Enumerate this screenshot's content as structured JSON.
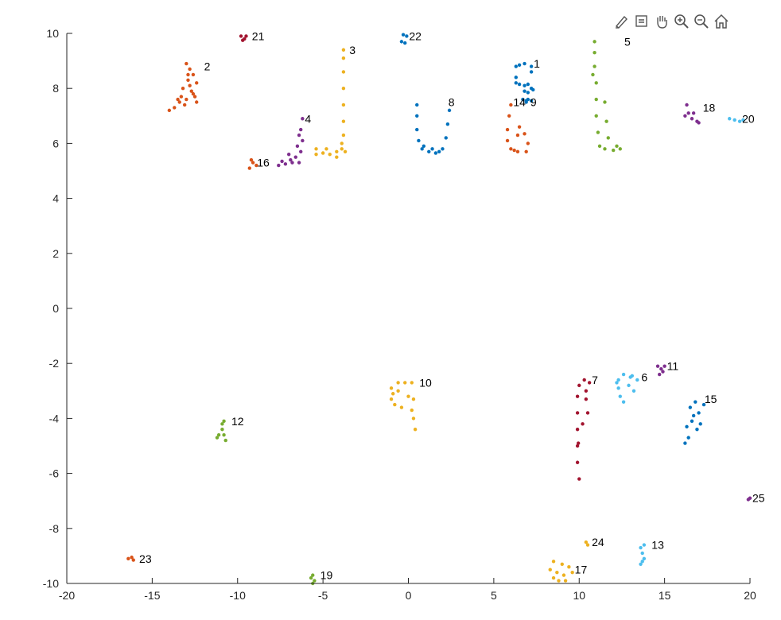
{
  "toolbar": {
    "buttons": [
      {
        "name": "brush-data-icon"
      },
      {
        "name": "data-cursor-icon"
      },
      {
        "name": "pan-icon"
      },
      {
        "name": "zoom-in-icon"
      },
      {
        "name": "zoom-out-icon"
      },
      {
        "name": "restore-view-icon"
      }
    ]
  },
  "chart_data": {
    "type": "scatter",
    "title": "",
    "xlabel": "",
    "ylabel": "",
    "xlim": [
      -20,
      20
    ],
    "ylim": [
      -10,
      10
    ],
    "xticks": [
      -20,
      -15,
      -10,
      -5,
      0,
      5,
      10,
      15,
      20
    ],
    "yticks": [
      -10,
      -8,
      -6,
      -4,
      -2,
      0,
      2,
      4,
      6,
      8,
      10
    ],
    "grid": false,
    "legend": "none",
    "palette": [
      "#0072BD",
      "#D95319",
      "#EDB120",
      "#7E2F8E",
      "#77AC30",
      "#4DBEEE",
      "#A2142F"
    ],
    "clusters": [
      {
        "label": "1",
        "color": "#0072BD",
        "label_pos": [
          7.2,
          8.9
        ],
        "points": [
          [
            6.3,
            8.8
          ],
          [
            6.3,
            8.4
          ],
          [
            6.3,
            8.2
          ],
          [
            6.5,
            8.15
          ],
          [
            6.8,
            8.1
          ],
          [
            7.0,
            8.15
          ],
          [
            7.2,
            8.0
          ],
          [
            7.3,
            7.95
          ],
          [
            7.0,
            7.85
          ],
          [
            6.8,
            7.9
          ],
          [
            7.2,
            8.8
          ],
          [
            7.2,
            8.6
          ],
          [
            6.8,
            8.9
          ],
          [
            6.5,
            8.85
          ],
          [
            7.0,
            7.6
          ],
          [
            7.2,
            7.55
          ],
          [
            6.9,
            7.5
          ]
        ]
      },
      {
        "label": "2",
        "color": "#D95319",
        "label_pos": [
          -12.1,
          8.8
        ],
        "points": [
          [
            -13.0,
            8.9
          ],
          [
            -12.8,
            8.7
          ],
          [
            -12.6,
            8.5
          ],
          [
            -12.9,
            8.3
          ],
          [
            -12.4,
            8.2
          ],
          [
            -13.2,
            8.0
          ],
          [
            -12.7,
            7.9
          ],
          [
            -12.5,
            7.7
          ],
          [
            -13.0,
            7.6
          ],
          [
            -13.4,
            7.5
          ],
          [
            -13.1,
            7.4
          ],
          [
            -13.7,
            7.3
          ],
          [
            -14.0,
            7.2
          ],
          [
            -12.8,
            8.1
          ],
          [
            -12.6,
            7.8
          ],
          [
            -13.3,
            7.7
          ],
          [
            -12.9,
            8.5
          ],
          [
            -12.4,
            7.5
          ],
          [
            -13.5,
            7.6
          ]
        ]
      },
      {
        "label": "3",
        "color": "#EDB120",
        "label_pos": [
          -3.6,
          9.4
        ],
        "points": [
          [
            -3.8,
            9.4
          ],
          [
            -3.8,
            9.1
          ],
          [
            -3.8,
            8.6
          ],
          [
            -3.8,
            8.0
          ],
          [
            -3.8,
            7.4
          ],
          [
            -3.8,
            6.8
          ],
          [
            -3.8,
            6.3
          ],
          [
            -3.9,
            5.8
          ],
          [
            -4.2,
            5.7
          ],
          [
            -4.6,
            5.6
          ],
          [
            -5.0,
            5.65
          ],
          [
            -5.4,
            5.6
          ],
          [
            -5.4,
            5.8
          ],
          [
            -4.8,
            5.8
          ],
          [
            -4.2,
            5.5
          ],
          [
            -3.7,
            5.7
          ],
          [
            -3.9,
            6.0
          ]
        ]
      },
      {
        "label": "4",
        "color": "#7E2F8E",
        "label_pos": [
          -6.2,
          6.9
        ],
        "points": [
          [
            -6.2,
            6.9
          ],
          [
            -6.3,
            6.5
          ],
          [
            -6.2,
            6.1
          ],
          [
            -6.3,
            5.7
          ],
          [
            -6.4,
            5.3
          ],
          [
            -6.8,
            5.3
          ],
          [
            -7.2,
            5.25
          ],
          [
            -7.6,
            5.2
          ],
          [
            -6.6,
            5.5
          ],
          [
            -7.0,
            5.6
          ],
          [
            -6.5,
            5.9
          ],
          [
            -6.9,
            5.4
          ],
          [
            -7.4,
            5.35
          ],
          [
            -6.4,
            6.3
          ]
        ]
      },
      {
        "label": "5",
        "color": "#77AC30",
        "label_pos": [
          12.5,
          9.7
        ],
        "points": [
          [
            10.9,
            9.7
          ],
          [
            10.9,
            9.3
          ],
          [
            10.9,
            8.8
          ],
          [
            11.0,
            8.2
          ],
          [
            11.0,
            7.6
          ],
          [
            11.0,
            7.0
          ],
          [
            11.1,
            6.4
          ],
          [
            11.2,
            5.9
          ],
          [
            11.5,
            5.8
          ],
          [
            12.0,
            5.75
          ],
          [
            12.4,
            5.8
          ],
          [
            11.5,
            7.5
          ],
          [
            11.6,
            6.8
          ],
          [
            11.7,
            6.2
          ],
          [
            12.2,
            5.9
          ],
          [
            10.8,
            8.5
          ]
        ]
      },
      {
        "label": "6",
        "color": "#4DBEEE",
        "label_pos": [
          13.5,
          -2.5
        ],
        "points": [
          [
            12.3,
            -2.6
          ],
          [
            12.6,
            -2.4
          ],
          [
            13.0,
            -2.5
          ],
          [
            13.4,
            -2.6
          ],
          [
            12.3,
            -2.9
          ],
          [
            12.4,
            -3.2
          ],
          [
            12.6,
            -3.4
          ],
          [
            12.9,
            -2.8
          ],
          [
            13.2,
            -3.0
          ],
          [
            12.2,
            -2.7
          ],
          [
            13.1,
            -2.45
          ]
        ]
      },
      {
        "label": "7",
        "color": "#A2142F",
        "label_pos": [
          10.6,
          -2.6
        ],
        "points": [
          [
            10.3,
            -2.6
          ],
          [
            10.0,
            -2.8
          ],
          [
            10.6,
            -2.7
          ],
          [
            9.9,
            -3.2
          ],
          [
            9.9,
            -3.8
          ],
          [
            9.9,
            -4.4
          ],
          [
            9.9,
            -5.0
          ],
          [
            9.9,
            -5.6
          ],
          [
            10.0,
            -6.2
          ],
          [
            10.4,
            -3.3
          ],
          [
            10.5,
            -3.8
          ],
          [
            10.2,
            -4.2
          ],
          [
            10.4,
            -3.0
          ],
          [
            9.95,
            -4.9
          ]
        ]
      },
      {
        "label": "8",
        "color": "#0072BD",
        "label_pos": [
          2.2,
          7.5
        ],
        "points": [
          [
            0.5,
            7.4
          ],
          [
            0.5,
            7.0
          ],
          [
            0.5,
            6.5
          ],
          [
            0.6,
            6.1
          ],
          [
            0.8,
            5.8
          ],
          [
            1.2,
            5.7
          ],
          [
            1.6,
            5.65
          ],
          [
            2.0,
            5.8
          ],
          [
            2.2,
            6.2
          ],
          [
            2.3,
            6.7
          ],
          [
            2.4,
            7.2
          ],
          [
            1.4,
            5.8
          ],
          [
            0.9,
            5.9
          ],
          [
            1.8,
            5.7
          ]
        ]
      },
      {
        "label": "9",
        "color": "#0072BD",
        "label_pos": [
          7.0,
          7.5
        ],
        "points": [
          [
            6.7,
            7.6
          ],
          [
            6.9,
            7.55
          ]
        ]
      },
      {
        "label": "10",
        "color": "#EDB120",
        "label_pos": [
          0.5,
          -2.7
        ],
        "points": [
          [
            -1.0,
            -2.9
          ],
          [
            -0.6,
            -2.7
          ],
          [
            -0.2,
            -2.7
          ],
          [
            0.2,
            -2.7
          ],
          [
            -1.0,
            -3.3
          ],
          [
            -0.8,
            -3.5
          ],
          [
            -0.4,
            -3.6
          ],
          [
            0.2,
            -3.7
          ],
          [
            0.3,
            -4.0
          ],
          [
            0.4,
            -4.4
          ],
          [
            -0.6,
            -3.0
          ],
          [
            0.0,
            -3.2
          ],
          [
            -0.9,
            -3.1
          ],
          [
            0.3,
            -3.3
          ]
        ]
      },
      {
        "label": "11",
        "color": "#7E2F8E",
        "label_pos": [
          15.0,
          -2.1
        ],
        "points": [
          [
            14.6,
            -2.1
          ],
          [
            14.8,
            -2.2
          ],
          [
            15.0,
            -2.1
          ],
          [
            14.7,
            -2.4
          ],
          [
            14.9,
            -2.3
          ]
        ]
      },
      {
        "label": "12",
        "color": "#77AC30",
        "label_pos": [
          -10.5,
          -4.1
        ],
        "points": [
          [
            -10.8,
            -4.1
          ],
          [
            -10.9,
            -4.4
          ],
          [
            -11.1,
            -4.6
          ],
          [
            -10.7,
            -4.8
          ],
          [
            -11.2,
            -4.7
          ],
          [
            -10.8,
            -4.6
          ],
          [
            -10.9,
            -4.2
          ]
        ]
      },
      {
        "label": "13",
        "color": "#4DBEEE",
        "label_pos": [
          14.1,
          -8.6
        ],
        "points": [
          [
            13.6,
            -8.7
          ],
          [
            13.7,
            -8.9
          ],
          [
            13.8,
            -9.1
          ],
          [
            13.6,
            -9.3
          ],
          [
            13.8,
            -8.6
          ],
          [
            13.7,
            -9.2
          ]
        ]
      },
      {
        "label": "14",
        "color": "#D95319",
        "label_pos": [
          6.0,
          7.5
        ],
        "points": [
          [
            6.0,
            7.4
          ],
          [
            5.9,
            7.0
          ],
          [
            5.8,
            6.5
          ],
          [
            5.8,
            6.1
          ],
          [
            6.0,
            5.8
          ],
          [
            6.4,
            5.7
          ],
          [
            6.9,
            5.7
          ],
          [
            6.4,
            6.3
          ],
          [
            7.0,
            6.0
          ],
          [
            6.5,
            6.6
          ],
          [
            6.2,
            5.75
          ],
          [
            6.8,
            6.35
          ]
        ]
      },
      {
        "label": "15",
        "color": "#0072BD",
        "label_pos": [
          17.2,
          -3.3
        ],
        "points": [
          [
            16.5,
            -3.6
          ],
          [
            16.8,
            -3.4
          ],
          [
            17.0,
            -3.8
          ],
          [
            16.6,
            -4.1
          ],
          [
            16.3,
            -4.3
          ],
          [
            16.9,
            -4.4
          ],
          [
            16.4,
            -4.7
          ],
          [
            16.2,
            -4.9
          ],
          [
            17.1,
            -4.2
          ],
          [
            16.7,
            -3.9
          ],
          [
            17.3,
            -3.5
          ]
        ]
      },
      {
        "label": "16",
        "color": "#D95319",
        "label_pos": [
          -9.0,
          5.3
        ],
        "points": [
          [
            -9.1,
            5.3
          ],
          [
            -9.3,
            5.1
          ],
          [
            -8.9,
            5.2
          ],
          [
            -9.2,
            5.4
          ]
        ]
      },
      {
        "label": "17",
        "color": "#EDB120",
        "label_pos": [
          9.6,
          -9.5
        ],
        "points": [
          [
            8.5,
            -9.2
          ],
          [
            8.7,
            -9.6
          ],
          [
            9.0,
            -9.3
          ],
          [
            9.4,
            -9.4
          ],
          [
            8.5,
            -9.8
          ],
          [
            9.1,
            -9.7
          ],
          [
            8.3,
            -9.5
          ],
          [
            9.2,
            -9.9
          ],
          [
            8.8,
            -9.9
          ],
          [
            9.6,
            -9.6
          ]
        ]
      },
      {
        "label": "18",
        "color": "#7E2F8E",
        "label_pos": [
          17.1,
          7.3
        ],
        "points": [
          [
            16.3,
            7.4
          ],
          [
            16.4,
            7.1
          ],
          [
            16.6,
            6.9
          ],
          [
            16.9,
            6.8
          ],
          [
            16.2,
            7.0
          ],
          [
            16.7,
            7.1
          ],
          [
            17.0,
            6.75
          ]
        ]
      },
      {
        "label": "19",
        "color": "#77AC30",
        "label_pos": [
          -5.3,
          -9.7
        ],
        "points": [
          [
            -5.6,
            -9.7
          ],
          [
            -5.7,
            -9.8
          ],
          [
            -5.5,
            -9.9
          ],
          [
            -5.6,
            -10.0
          ]
        ]
      },
      {
        "label": "20",
        "color": "#4DBEEE",
        "label_pos": [
          19.4,
          6.9
        ],
        "points": [
          [
            18.8,
            6.9
          ],
          [
            19.1,
            6.85
          ],
          [
            19.4,
            6.8
          ],
          [
            19.6,
            6.85
          ]
        ]
      },
      {
        "label": "21",
        "color": "#A2142F",
        "label_pos": [
          -9.3,
          9.9
        ],
        "points": [
          [
            -9.8,
            9.9
          ],
          [
            -9.6,
            9.8
          ],
          [
            -9.5,
            9.9
          ],
          [
            -9.7,
            9.75
          ]
        ]
      },
      {
        "label": "22",
        "color": "#0072BD",
        "label_pos": [
          -0.1,
          9.9
        ],
        "points": [
          [
            -0.3,
            9.95
          ],
          [
            -0.1,
            9.9
          ],
          [
            -0.4,
            9.7
          ],
          [
            -0.2,
            9.65
          ]
        ]
      },
      {
        "label": "23",
        "color": "#D95319",
        "label_pos": [
          -15.9,
          -9.1
        ],
        "points": [
          [
            -16.4,
            -9.1
          ],
          [
            -16.1,
            -9.15
          ],
          [
            -16.2,
            -9.05
          ]
        ]
      },
      {
        "label": "24",
        "color": "#EDB120",
        "label_pos": [
          10.6,
          -8.5
        ],
        "points": [
          [
            10.4,
            -8.5
          ],
          [
            10.5,
            -8.6
          ]
        ]
      },
      {
        "label": "25",
        "color": "#7E2F8E",
        "label_pos": [
          20.0,
          -6.9
        ],
        "points": [
          [
            19.9,
            -6.95
          ],
          [
            20.0,
            -6.9
          ]
        ]
      }
    ]
  }
}
